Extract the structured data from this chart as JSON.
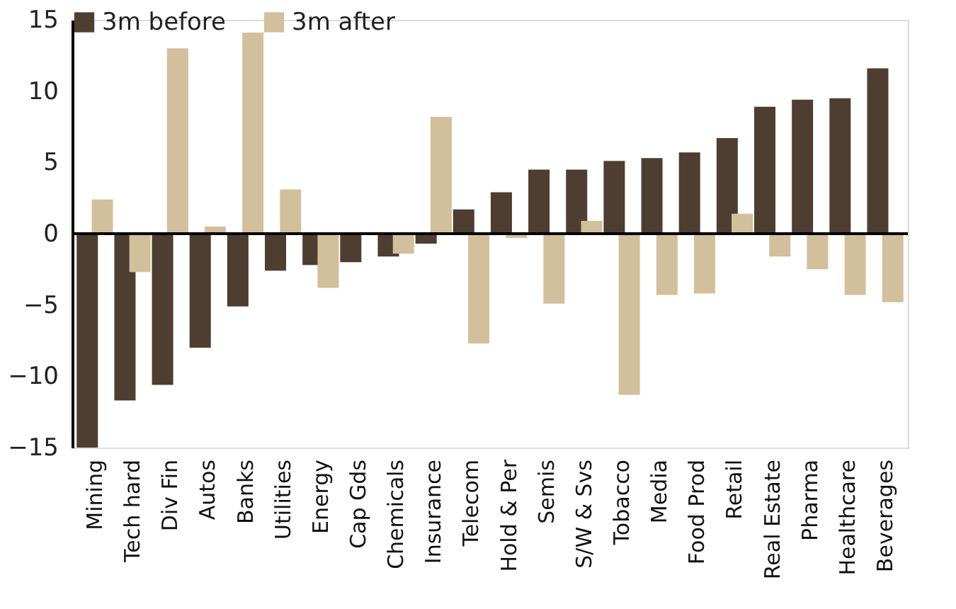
{
  "chart_data": {
    "type": "bar",
    "categories": [
      "Mining",
      "Tech hard",
      "Div Fin",
      "Autos",
      "Banks",
      "Utilities",
      "Energy",
      "Cap Gds",
      "Chemicals",
      "Insurance",
      "Telecom",
      "Hold & Per",
      "Semis",
      "S/W & Svs",
      "Tobacco",
      "Media",
      "Food Prod",
      "Retail",
      "Real Estate",
      "Pharma",
      "Healthcare",
      "Beverages"
    ],
    "series": [
      {
        "name": "3m before",
        "color": "#4e3d31",
        "values": [
          -15.0,
          -11.7,
          -10.6,
          -8.0,
          -5.1,
          -2.6,
          -2.2,
          -2.0,
          -1.6,
          -0.7,
          1.7,
          2.9,
          4.5,
          4.5,
          5.1,
          5.3,
          5.7,
          6.7,
          8.9,
          9.4,
          9.5,
          11.6
        ]
      },
      {
        "name": "3m after",
        "color": "#d2bf9c",
        "values": [
          2.4,
          -2.7,
          13.0,
          0.5,
          14.1,
          3.1,
          -3.8,
          null,
          -1.4,
          8.2,
          -7.7,
          -0.3,
          -4.9,
          0.9,
          -11.3,
          -4.3,
          -4.2,
          1.4,
          -1.6,
          -2.5,
          -4.3,
          -4.8
        ]
      }
    ],
    "ylim": [
      -15,
      15
    ],
    "yticks": [
      -15,
      -10,
      -5,
      0,
      5,
      10,
      15
    ],
    "ref_lines": [
      {
        "axis": "y",
        "value": 0,
        "color": "#000000"
      }
    ],
    "legend": "top"
  }
}
